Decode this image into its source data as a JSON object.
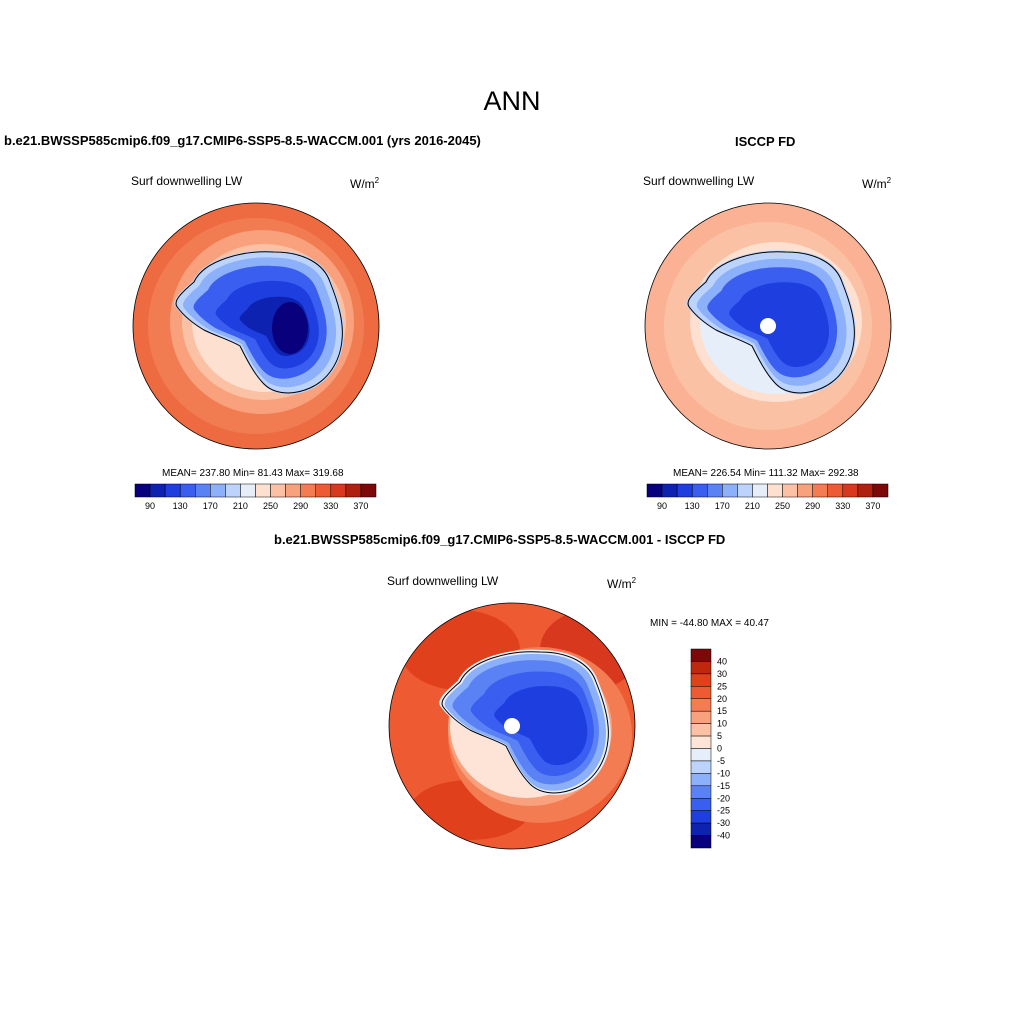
{
  "figure": {
    "title": "ANN"
  },
  "panels": {
    "model": {
      "title": "b.e21.BWSSP585cmip6.f09_g17.CMIP6-SSP5-8.5-WACCM.001 (yrs 2016-2045)",
      "variable": "Surf downwelling LW",
      "units_base": "W/m",
      "units_exp": "2",
      "stats": "MEAN= 237.80  Min=  81.43  Max= 319.68",
      "stats_values": {
        "mean": 237.8,
        "min": 81.43,
        "max": 319.68
      }
    },
    "obs": {
      "title": "ISCCP FD",
      "variable": "Surf downwelling LW",
      "units_base": "W/m",
      "units_exp": "2",
      "stats": "MEAN= 226.54  Min= 111.32  Max= 292.38",
      "stats_values": {
        "mean": 226.54,
        "min": 111.32,
        "max": 292.38
      }
    },
    "diff": {
      "title": "b.e21.BWSSP585cmip6.f09_g17.CMIP6-SSP5-8.5-WACCM.001 - ISCCP FD",
      "variable": "Surf downwelling LW",
      "units_base": "W/m",
      "units_exp": "2",
      "stats": "MIN = -44.80 MAX =  40.47",
      "stats_values": {
        "min": -44.8,
        "max": 40.47
      }
    }
  },
  "colorbars": {
    "absolute": {
      "ticks": [
        "90",
        "130",
        "170",
        "210",
        "250",
        "290",
        "330",
        "370"
      ],
      "levels": [
        90,
        110,
        130,
        150,
        170,
        190,
        210,
        230,
        250,
        270,
        290,
        310,
        330,
        350,
        370
      ],
      "colors": [
        "#08007c",
        "#0d22b0",
        "#1e3ee0",
        "#3a5ef0",
        "#5b82f5",
        "#8cb0fa",
        "#bcd4fb",
        "#e6eefa",
        "#fde0d0",
        "#fbc1a4",
        "#f9a07c",
        "#f47c52",
        "#ee5a32",
        "#d8381e",
        "#b0200e",
        "#7c0808"
      ]
    },
    "difference": {
      "ticks": [
        "40",
        "30",
        "25",
        "20",
        "15",
        "10",
        "5",
        "0",
        "-5",
        "-10",
        "-15",
        "-20",
        "-25",
        "-30",
        "-40"
      ],
      "colors": [
        "#7c0808",
        "#c0280e",
        "#e0401c",
        "#ee5a32",
        "#f47c52",
        "#f9a07c",
        "#fbc1a4",
        "#fde4d6",
        "#e6eefa",
        "#bcd4fb",
        "#8cb0fa",
        "#5b82f5",
        "#3a5ef0",
        "#1e3ee0",
        "#0d22b0",
        "#08007c"
      ]
    }
  }
}
